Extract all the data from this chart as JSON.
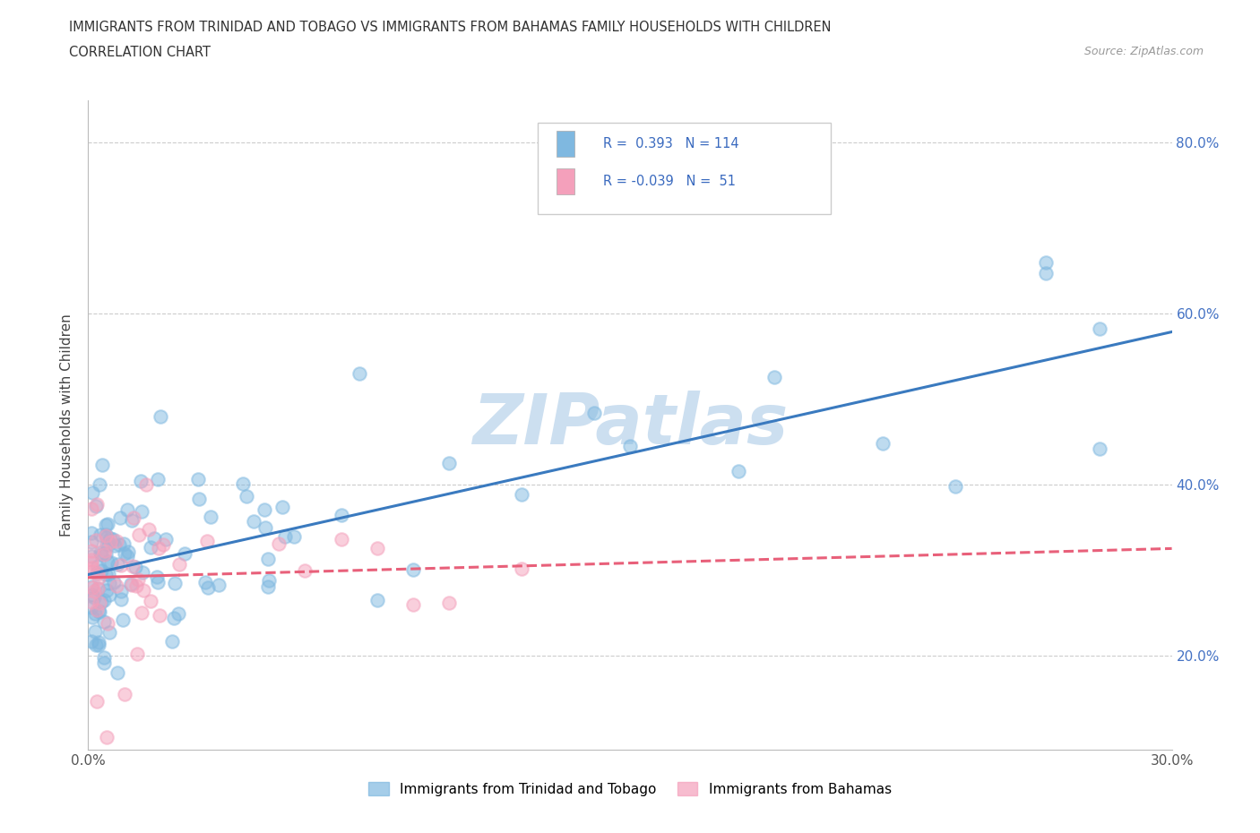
{
  "title": "IMMIGRANTS FROM TRINIDAD AND TOBAGO VS IMMIGRANTS FROM BAHAMAS FAMILY HOUSEHOLDS WITH CHILDREN",
  "subtitle": "CORRELATION CHART",
  "source": "Source: ZipAtlas.com",
  "ylabel": "Family Households with Children",
  "xlim": [
    0.0,
    0.3
  ],
  "ylim": [
    0.09,
    0.85
  ],
  "r_tt": 0.393,
  "n_tt": 114,
  "r_bh": -0.039,
  "n_bh": 51,
  "color_tt": "#7fb8e0",
  "color_bh": "#f4a0bb",
  "trendline_tt_color": "#3a7abf",
  "trendline_bh_color": "#e8607a",
  "watermark": "ZIPatlas",
  "watermark_color": "#ccdff0",
  "legend_label_tt": "Immigrants from Trinidad and Tobago",
  "legend_label_bh": "Immigrants from Bahamas",
  "ytick_vals": [
    0.2,
    0.4,
    0.6,
    0.8
  ],
  "ytick_labels": [
    "20.0%",
    "40.0%",
    "60.0%",
    "80.0%"
  ],
  "grid_color": "#cccccc",
  "spine_color": "#bbbbbb",
  "tt_intercept": 0.295,
  "tt_slope": 0.9,
  "bh_intercept": 0.305,
  "bh_slope": -0.08
}
